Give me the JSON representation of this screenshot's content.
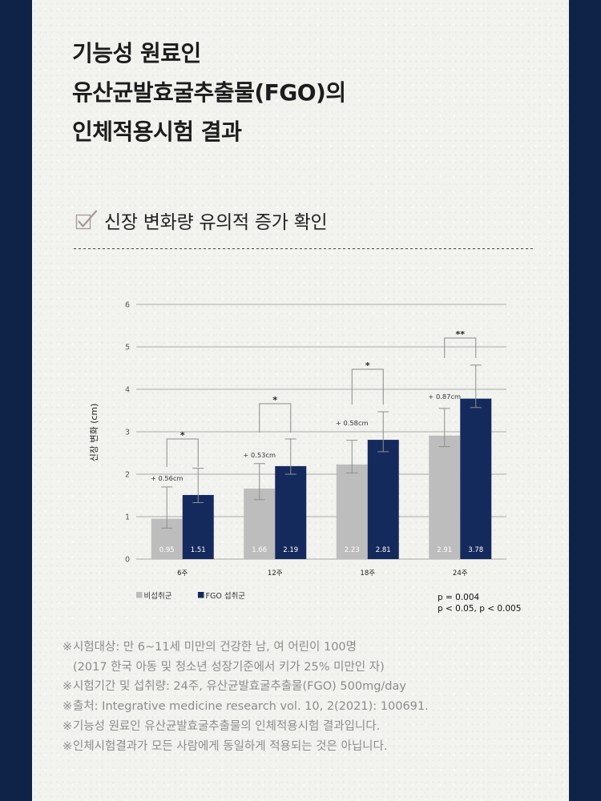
{
  "colors": {
    "frame": "#0f2247",
    "panel": "#f2f2ef"
  },
  "title": {
    "lines": [
      "기능성 원료인",
      "유산균발효굴추출물(FGO)의",
      "인체적용시험 결과"
    ]
  },
  "subheading": {
    "icon": "checkbox-check-icon",
    "text": "신장 변화량 유의적 증가 확인"
  },
  "chart_data": {
    "type": "bar",
    "categories": [
      "6주",
      "12주",
      "18주",
      "24주"
    ],
    "ylabel": "신장 변화 (cm)",
    "ylim": [
      0,
      6
    ],
    "yticks": [
      0,
      1,
      2,
      3,
      4,
      5,
      6
    ],
    "grid": true,
    "legend_position": "bottom-left",
    "series": [
      {
        "name": "비섭취군",
        "color": "#bdbdbd",
        "values": [
          0.95,
          1.66,
          2.23,
          2.91
        ],
        "error_low": [
          0.73,
          1.4,
          2.03,
          2.65
        ],
        "error_high": [
          1.7,
          2.25,
          2.8,
          3.55
        ]
      },
      {
        "name": "FGO 섭취군",
        "color": "#152a5c",
        "values": [
          1.51,
          2.19,
          2.81,
          3.78
        ],
        "error_low": [
          1.33,
          2.0,
          2.53,
          3.57
        ],
        "error_high": [
          2.14,
          2.83,
          3.47,
          4.57
        ]
      }
    ],
    "differences": [
      "+ 0.56cm",
      "+ 0.53cm",
      "+ 0.58cm",
      "+ 0.87cm"
    ],
    "significance": [
      "*",
      "*",
      "*",
      "**"
    ],
    "p_value_notes": [
      "p = 0.004",
      "p < 0.05, p < 0.005"
    ]
  },
  "footnotes": {
    "marker": "※",
    "items": [
      {
        "lines": [
          "시험대상: 만 6~11세 미만의 건강한 남, 여 어린이 100명",
          "(2017 한국 아동 및 청소년 성장기준에서 키가 25% 미만인 자)"
        ]
      },
      {
        "lines": [
          "시험기간 및 섭취량: 24주, 유산균발효굴추출물(FGO) 500mg/day"
        ]
      },
      {
        "lines": [
          "출처: Integrative medicine research vol. 10, 2(2021): 100691."
        ]
      },
      {
        "lines": [
          "기능성 원료인 유산균발효굴추출물의 인체적용시험 결과입니다."
        ]
      },
      {
        "lines": [
          "인체시험결과가 모든 사람에게 동일하게 적용되는 것은 아닙니다."
        ]
      }
    ]
  }
}
